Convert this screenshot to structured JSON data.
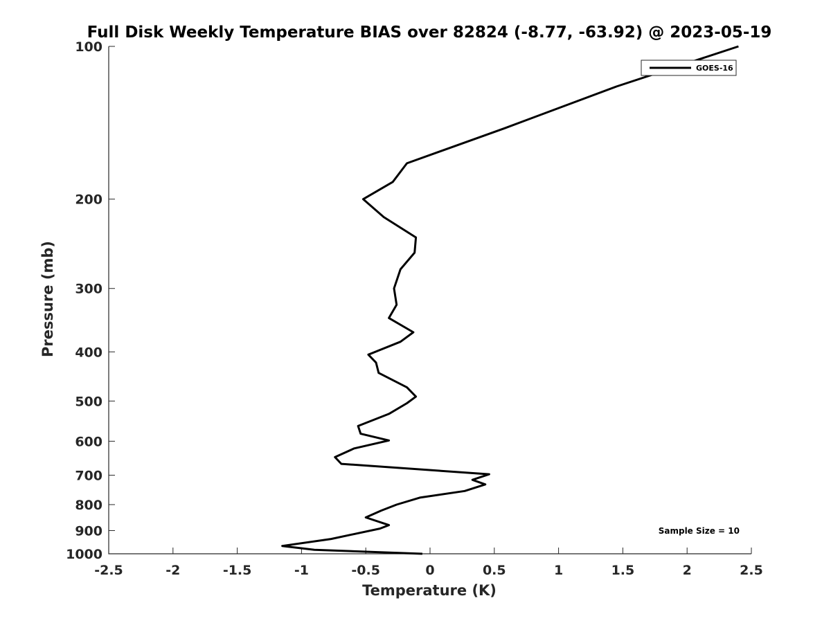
{
  "chart_data": {
    "type": "line",
    "title": "Full Disk Weekly Temperature BIAS over 82824 (-8.77, -63.92) @ 2023-05-19",
    "xlabel": "Temperature (K)",
    "ylabel": "Pressure (mb)",
    "xlim": [
      -2.5,
      2.5
    ],
    "ylim": [
      100,
      1000
    ],
    "y_scale": "log",
    "y_reversed": true,
    "grid": false,
    "legend_position": "top-right",
    "x_ticks": [
      -2.5,
      -2,
      -1.5,
      -1,
      -0.5,
      0,
      0.5,
      1,
      1.5,
      2,
      2.5
    ],
    "x_tick_labels": [
      "-2.5",
      "-2",
      "-1.5",
      "-1",
      "-0.5",
      "0",
      "0.5",
      "1",
      "1.5",
      "2",
      "2.5"
    ],
    "y_ticks": [
      100,
      200,
      300,
      400,
      500,
      600,
      700,
      800,
      900,
      1000
    ],
    "y_tick_labels": [
      "100",
      "200",
      "300",
      "400",
      "500",
      "600",
      "700",
      "800",
      "900",
      "1000"
    ],
    "series": [
      {
        "name": "GOES-16",
        "color": "#000000",
        "points": [
          {
            "x": 2.4,
            "p": 100
          },
          {
            "x": 1.45,
            "p": 120
          },
          {
            "x": 0.58,
            "p": 145
          },
          {
            "x": -0.18,
            "p": 170
          },
          {
            "x": -0.29,
            "p": 185
          },
          {
            "x": -0.52,
            "p": 200
          },
          {
            "x": -0.36,
            "p": 217
          },
          {
            "x": -0.11,
            "p": 238
          },
          {
            "x": -0.12,
            "p": 255
          },
          {
            "x": -0.23,
            "p": 275
          },
          {
            "x": -0.28,
            "p": 300
          },
          {
            "x": -0.26,
            "p": 323
          },
          {
            "x": -0.32,
            "p": 343
          },
          {
            "x": -0.13,
            "p": 366
          },
          {
            "x": -0.23,
            "p": 382
          },
          {
            "x": -0.48,
            "p": 405
          },
          {
            "x": -0.42,
            "p": 420
          },
          {
            "x": -0.4,
            "p": 440
          },
          {
            "x": -0.18,
            "p": 470
          },
          {
            "x": -0.11,
            "p": 490
          },
          {
            "x": -0.18,
            "p": 505
          },
          {
            "x": -0.32,
            "p": 530
          },
          {
            "x": -0.56,
            "p": 560
          },
          {
            "x": -0.54,
            "p": 580
          },
          {
            "x": -0.32,
            "p": 598
          },
          {
            "x": -0.59,
            "p": 620
          },
          {
            "x": -0.74,
            "p": 645
          },
          {
            "x": -0.69,
            "p": 665
          },
          {
            "x": 0.46,
            "p": 697
          },
          {
            "x": 0.33,
            "p": 715
          },
          {
            "x": 0.43,
            "p": 730
          },
          {
            "x": 0.27,
            "p": 752
          },
          {
            "x": -0.08,
            "p": 775
          },
          {
            "x": -0.26,
            "p": 800
          },
          {
            "x": -0.38,
            "p": 822
          },
          {
            "x": -0.5,
            "p": 848
          },
          {
            "x": -0.32,
            "p": 878
          },
          {
            "x": -0.39,
            "p": 892
          },
          {
            "x": -0.77,
            "p": 935
          },
          {
            "x": -1.15,
            "p": 965
          },
          {
            "x": -0.9,
            "p": 982
          },
          {
            "x": -0.06,
            "p": 1000
          }
        ]
      }
    ],
    "annotations": [
      {
        "text": "Sample Size = 10",
        "position": "bottom-right"
      }
    ]
  }
}
